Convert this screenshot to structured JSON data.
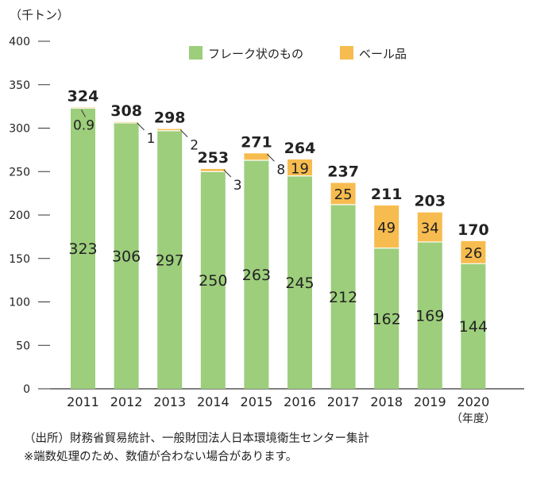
{
  "chart_data": {
    "type": "bar",
    "stacked": true,
    "unit_label": "（千トン）",
    "xunit_label": "（年度）",
    "categories": [
      "2011",
      "2012",
      "2013",
      "2014",
      "2015",
      "2016",
      "2017",
      "2018",
      "2019",
      "2020"
    ],
    "series": [
      {
        "name": "フレーク状のもの",
        "color": "#9dce7c",
        "values": [
          323,
          306,
          297,
          250,
          263,
          245,
          212,
          162,
          169,
          144
        ],
        "labels": [
          "323",
          "306",
          "297",
          "250",
          "263",
          "245",
          "212",
          "162",
          "169",
          "144"
        ]
      },
      {
        "name": "ベール品",
        "color": "#f7bc4f",
        "values": [
          0.9,
          1,
          2,
          3,
          8,
          19,
          25,
          49,
          34,
          26
        ],
        "labels": [
          "0.9",
          "1",
          "2",
          "3",
          "8",
          "19",
          "25",
          "49",
          "34",
          "26"
        ]
      }
    ],
    "totals": [
      "324",
      "308",
      "298",
      "253",
      "271",
      "264",
      "237",
      "211",
      "203",
      "170"
    ],
    "yticks": [
      0,
      50,
      100,
      150,
      200,
      250,
      300,
      350,
      400
    ],
    "ylim": [
      0,
      400
    ],
    "legend_position": "top"
  },
  "notes": [
    "（出所）財務省貿易統計、一般財団法人日本環境衛生センター集計",
    "※端数処理のため、数値が合わない場合があります。"
  ]
}
